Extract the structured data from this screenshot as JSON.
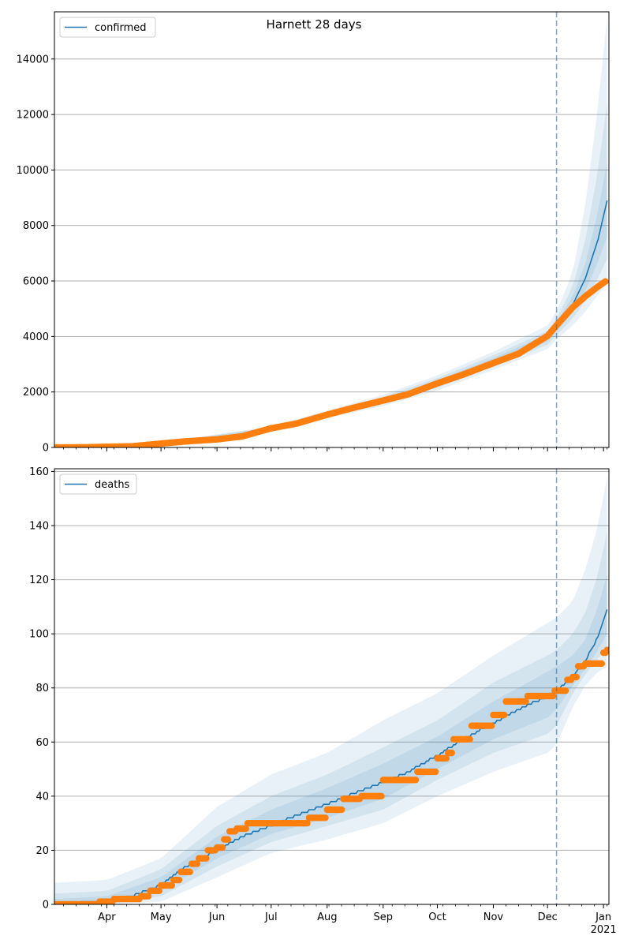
{
  "figure": {
    "title": "Harnett 28 days"
  },
  "colors": {
    "model": "#1f77b4",
    "observed": "#ff7f0e",
    "grid": "#b0b0b0",
    "forecast_line": "#1f77b4"
  },
  "chart_data": [
    {
      "type": "line",
      "panel": "confirmed",
      "legend": "confirmed",
      "legend_position": "top-left",
      "grid": "horizontal",
      "xlim": [
        "2020-03-03",
        "2021-01-04"
      ],
      "ylim": [
        0,
        15700
      ],
      "yticks": [
        0,
        2000,
        4000,
        6000,
        8000,
        10000,
        12000,
        14000
      ],
      "forecast_start": "2020-12-06",
      "model_median": [
        [
          "2020-03-03",
          0
        ],
        [
          "2020-04-01",
          30
        ],
        [
          "2020-04-15",
          60
        ],
        [
          "2020-05-01",
          150
        ],
        [
          "2020-05-15",
          220
        ],
        [
          "2020-06-01",
          300
        ],
        [
          "2020-06-15",
          420
        ],
        [
          "2020-07-01",
          680
        ],
        [
          "2020-07-15",
          860
        ],
        [
          "2020-08-01",
          1180
        ],
        [
          "2020-08-15",
          1420
        ],
        [
          "2020-09-01",
          1700
        ],
        [
          "2020-09-15",
          1930
        ],
        [
          "2020-10-01",
          2320
        ],
        [
          "2020-10-15",
          2700
        ],
        [
          "2020-11-01",
          3100
        ],
        [
          "2020-11-15",
          3430
        ],
        [
          "2020-12-01",
          3950
        ],
        [
          "2020-12-06",
          4350
        ],
        [
          "2020-12-15",
          5150
        ],
        [
          "2020-12-22",
          6100
        ],
        [
          "2020-12-29",
          7500
        ],
        [
          "2021-01-03",
          8900
        ]
      ],
      "bands": [
        {
          "level": "outer",
          "points": [
            [
              "2020-03-03",
              0,
              0
            ],
            [
              "2020-05-01",
              120,
              180
            ],
            [
              "2020-07-01",
              600,
              760
            ],
            [
              "2020-09-01",
              1500,
              1900
            ],
            [
              "2020-10-01",
              2050,
              2600
            ],
            [
              "2020-11-01",
              2800,
              3450
            ],
            [
              "2020-12-01",
              3550,
              4400
            ],
            [
              "2020-12-06",
              3900,
              4900
            ],
            [
              "2020-12-15",
              4400,
              6300
            ],
            [
              "2020-12-22",
              4900,
              8800
            ],
            [
              "2020-12-29",
              5500,
              12300
            ],
            [
              "2021-01-03",
              5900,
              15500
            ]
          ]
        },
        {
          "level": "middle",
          "points": [
            [
              "2020-03-03",
              0,
              0
            ],
            [
              "2020-05-01",
              130,
              170
            ],
            [
              "2020-07-01",
              630,
              730
            ],
            [
              "2020-09-01",
              1580,
              1820
            ],
            [
              "2020-10-01",
              2150,
              2500
            ],
            [
              "2020-11-01",
              2920,
              3320
            ],
            [
              "2020-12-01",
              3700,
              4200
            ],
            [
              "2020-12-06",
              4050,
              4650
            ],
            [
              "2020-12-15",
              4650,
              5800
            ],
            [
              "2020-12-22",
              5300,
              7500
            ],
            [
              "2020-12-29",
              6100,
              10000
            ],
            [
              "2021-01-03",
              6800,
              12400
            ]
          ]
        },
        {
          "level": "inner",
          "points": [
            [
              "2020-03-03",
              0,
              0
            ],
            [
              "2020-05-01",
              140,
              160
            ],
            [
              "2020-07-01",
              650,
              710
            ],
            [
              "2020-09-01",
              1640,
              1760
            ],
            [
              "2020-10-01",
              2230,
              2420
            ],
            [
              "2020-11-01",
              3000,
              3220
            ],
            [
              "2020-12-01",
              3820,
              4080
            ],
            [
              "2020-12-06",
              4180,
              4500
            ],
            [
              "2020-12-15",
              4870,
              5450
            ],
            [
              "2020-12-22",
              5650,
              6650
            ],
            [
              "2020-12-29",
              6700,
              8500
            ],
            [
              "2021-01-03",
              7600,
              10300
            ]
          ]
        }
      ],
      "observed": [
        [
          "2020-03-03",
          0
        ],
        [
          "2020-03-20",
          5
        ],
        [
          "2020-04-01",
          25
        ],
        [
          "2020-04-15",
          40
        ],
        [
          "2020-05-01",
          140
        ],
        [
          "2020-05-15",
          220
        ],
        [
          "2020-06-01",
          290
        ],
        [
          "2020-06-15",
          400
        ],
        [
          "2020-07-01",
          690
        ],
        [
          "2020-07-15",
          860
        ],
        [
          "2020-08-01",
          1180
        ],
        [
          "2020-08-15",
          1420
        ],
        [
          "2020-09-01",
          1690
        ],
        [
          "2020-09-15",
          1920
        ],
        [
          "2020-10-01",
          2310
        ],
        [
          "2020-10-15",
          2620
        ],
        [
          "2020-11-01",
          3040
        ],
        [
          "2020-11-15",
          3380
        ],
        [
          "2020-12-01",
          4020
        ],
        [
          "2020-12-06",
          4400
        ],
        [
          "2020-12-15",
          5050
        ],
        [
          "2020-12-22",
          5450
        ],
        [
          "2020-12-29",
          5800
        ],
        [
          "2021-01-02",
          5980
        ]
      ]
    },
    {
      "type": "line",
      "panel": "deaths",
      "legend": "deaths",
      "legend_position": "top-left",
      "grid": "horizontal",
      "xlim": [
        "2020-03-03",
        "2021-01-04"
      ],
      "ylim": [
        0,
        161
      ],
      "yticks": [
        0,
        20,
        40,
        60,
        80,
        100,
        120,
        140,
        160
      ],
      "forecast_start": "2020-12-06",
      "model_median": [
        [
          "2020-03-03",
          0
        ],
        [
          "2020-04-01",
          1
        ],
        [
          "2020-04-15",
          3
        ],
        [
          "2020-05-01",
          7
        ],
        [
          "2020-05-15",
          14
        ],
        [
          "2020-06-01",
          20
        ],
        [
          "2020-06-15",
          25
        ],
        [
          "2020-07-01",
          29
        ],
        [
          "2020-07-15",
          33
        ],
        [
          "2020-08-01",
          37
        ],
        [
          "2020-08-15",
          41
        ],
        [
          "2020-09-01",
          45
        ],
        [
          "2020-09-15",
          49
        ],
        [
          "2020-10-01",
          55
        ],
        [
          "2020-10-15",
          61
        ],
        [
          "2020-11-01",
          67
        ],
        [
          "2020-11-15",
          72
        ],
        [
          "2020-12-01",
          77
        ],
        [
          "2020-12-06",
          79
        ],
        [
          "2020-12-15",
          84
        ],
        [
          "2020-12-22",
          90
        ],
        [
          "2020-12-29",
          99
        ],
        [
          "2021-01-03",
          109
        ]
      ],
      "bands": [
        {
          "level": "outer",
          "points": [
            [
              "2020-03-03",
              0,
              8
            ],
            [
              "2020-04-01",
              0,
              9
            ],
            [
              "2020-05-01",
              1,
              17
            ],
            [
              "2020-06-01",
              10,
              36
            ],
            [
              "2020-07-01",
              19,
              48
            ],
            [
              "2020-08-01",
              24,
              56
            ],
            [
              "2020-09-01",
              30,
              68
            ],
            [
              "2020-10-01",
              40,
              78
            ],
            [
              "2020-11-01",
              49,
              92
            ],
            [
              "2020-12-01",
              56,
              104
            ],
            [
              "2020-12-06",
              59,
              106
            ],
            [
              "2020-12-15",
              73,
              112
            ],
            [
              "2020-12-22",
              81,
              124
            ],
            [
              "2020-12-29",
              86,
              140
            ],
            [
              "2021-01-03",
              88,
              158
            ]
          ]
        },
        {
          "level": "middle",
          "points": [
            [
              "2020-03-03",
              0,
              4
            ],
            [
              "2020-04-01",
              0,
              5
            ],
            [
              "2020-05-01",
              3,
              13
            ],
            [
              "2020-06-01",
              14,
              29
            ],
            [
              "2020-07-01",
              23,
              40
            ],
            [
              "2020-08-01",
              29,
              48
            ],
            [
              "2020-09-01",
              35,
              58
            ],
            [
              "2020-10-01",
              46,
              68
            ],
            [
              "2020-11-01",
              56,
              82
            ],
            [
              "2020-12-01",
              63,
              92
            ],
            [
              "2020-12-06",
              66,
              94
            ],
            [
              "2020-12-15",
              78,
              100
            ],
            [
              "2020-12-22",
              85,
              108
            ],
            [
              "2020-12-29",
              91,
              122
            ],
            [
              "2021-01-03",
              95,
              138
            ]
          ]
        },
        {
          "level": "inner",
          "points": [
            [
              "2020-03-03",
              0,
              2
            ],
            [
              "2020-04-01",
              0,
              3
            ],
            [
              "2020-05-01",
              5,
              10
            ],
            [
              "2020-06-01",
              17,
              25
            ],
            [
              "2020-07-01",
              26,
              35
            ],
            [
              "2020-08-01",
              32,
              43
            ],
            [
              "2020-09-01",
              39,
              52
            ],
            [
              "2020-10-01",
              50,
              62
            ],
            [
              "2020-11-01",
              61,
              75
            ],
            [
              "2020-12-01",
              69,
              86
            ],
            [
              "2020-12-06",
              72,
              88
            ],
            [
              "2020-12-15",
              81,
              92
            ],
            [
              "2020-12-22",
              87,
              98
            ],
            [
              "2020-12-29",
              94,
              110
            ],
            [
              "2021-01-03",
              100,
              122
            ]
          ]
        }
      ],
      "observed": [
        [
          "2020-03-03",
          0
        ],
        [
          "2020-03-28",
          1
        ],
        [
          "2020-04-05",
          2
        ],
        [
          "2020-04-20",
          3
        ],
        [
          "2020-04-25",
          5
        ],
        [
          "2020-05-01",
          7
        ],
        [
          "2020-05-08",
          9
        ],
        [
          "2020-05-12",
          12
        ],
        [
          "2020-05-18",
          15
        ],
        [
          "2020-05-22",
          17
        ],
        [
          "2020-05-27",
          20
        ],
        [
          "2020-06-01",
          21
        ],
        [
          "2020-06-05",
          24
        ],
        [
          "2020-06-08",
          27
        ],
        [
          "2020-06-12",
          28
        ],
        [
          "2020-06-18",
          30
        ],
        [
          "2020-07-01",
          30
        ],
        [
          "2020-07-15",
          30
        ],
        [
          "2020-07-22",
          32
        ],
        [
          "2020-08-01",
          35
        ],
        [
          "2020-08-10",
          39
        ],
        [
          "2020-08-20",
          40
        ],
        [
          "2020-09-01",
          46
        ],
        [
          "2020-09-15",
          46
        ],
        [
          "2020-09-20",
          49
        ],
        [
          "2020-10-01",
          54
        ],
        [
          "2020-10-07",
          56
        ],
        [
          "2020-10-10",
          61
        ],
        [
          "2020-10-20",
          66
        ],
        [
          "2020-11-01",
          70
        ],
        [
          "2020-11-08",
          75
        ],
        [
          "2020-11-20",
          77
        ],
        [
          "2020-12-01",
          77
        ],
        [
          "2020-12-05",
          79
        ],
        [
          "2020-12-10",
          79
        ],
        [
          "2020-12-12",
          83
        ],
        [
          "2020-12-15",
          84
        ],
        [
          "2020-12-18",
          88
        ],
        [
          "2020-12-22",
          89
        ],
        [
          "2020-12-29",
          89
        ],
        [
          "2021-01-01",
          93
        ],
        [
          "2021-01-03",
          94
        ]
      ]
    }
  ],
  "x_axis": {
    "month_labels": [
      {
        "date": "2020-04-01",
        "label": "Apr"
      },
      {
        "date": "2020-05-01",
        "label": "May"
      },
      {
        "date": "2020-06-01",
        "label": "Jun"
      },
      {
        "date": "2020-07-01",
        "label": "Jul"
      },
      {
        "date": "2020-08-01",
        "label": "Aug"
      },
      {
        "date": "2020-09-01",
        "label": "Sep"
      },
      {
        "date": "2020-10-01",
        "label": "Oct"
      },
      {
        "date": "2020-11-01",
        "label": "Nov"
      },
      {
        "date": "2020-12-01",
        "label": "Dec"
      },
      {
        "date": "2021-01-01",
        "label": "Jan"
      }
    ],
    "year_label": "2021"
  }
}
